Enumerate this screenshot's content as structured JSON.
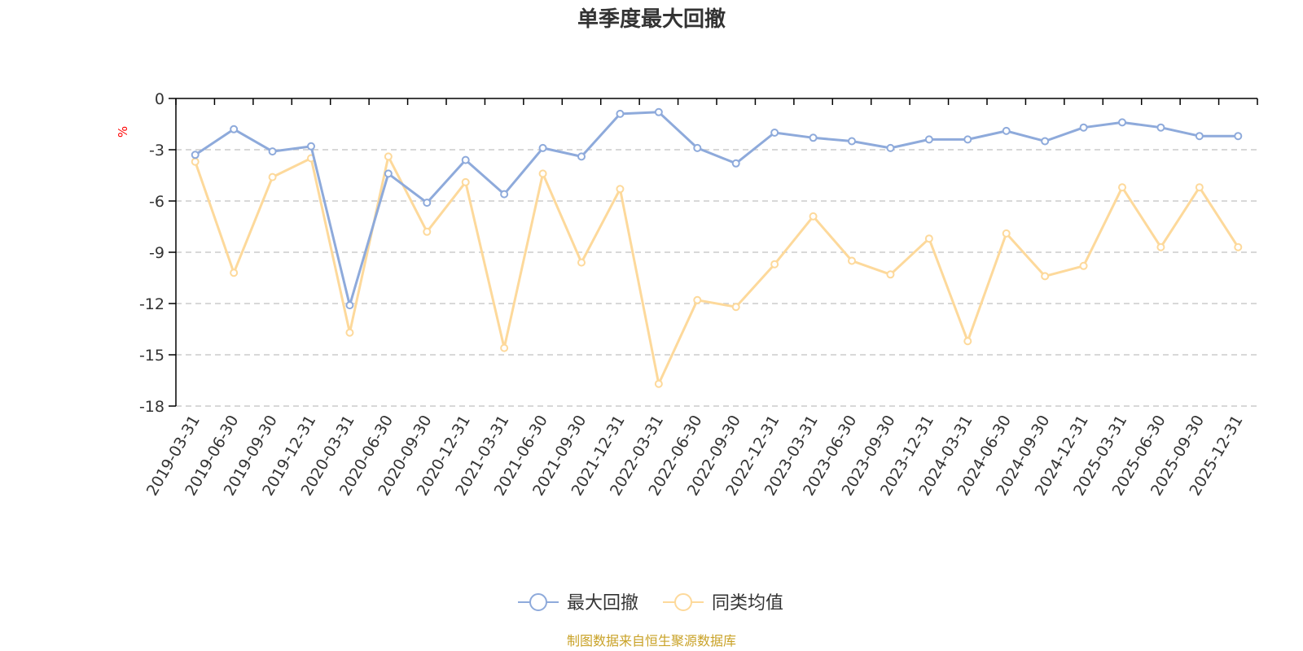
{
  "chart_data": {
    "type": "line",
    "title": "单季度最大回撤",
    "ylabel": "%",
    "ylim": [
      -18,
      0
    ],
    "yticks": [
      0,
      -3,
      -6,
      -9,
      -12,
      -15,
      -18
    ],
    "grid": true,
    "legend_position": "bottom",
    "categories": [
      "2019-03-31",
      "2019-06-30",
      "2019-09-30",
      "2019-12-31",
      "2020-03-31",
      "2020-06-30",
      "2020-09-30",
      "2020-12-31",
      "2021-03-31",
      "2021-06-30",
      "2021-09-30",
      "2021-12-31",
      "2022-03-31",
      "2022-06-30",
      "2022-09-30",
      "2022-12-31",
      "2023-03-31",
      "2023-06-30",
      "2023-09-30",
      "2023-12-31",
      "2024-03-31",
      "2024-06-30",
      "2024-09-30",
      "2024-12-31",
      "2025-03-31",
      "2025-06-30",
      "2025-09-30",
      "2025-12-31"
    ],
    "series": [
      {
        "name": "最大回撤",
        "color": "#8eaadb",
        "values": [
          -3.3,
          -1.8,
          -3.1,
          -2.8,
          -12.1,
          -4.4,
          -6.1,
          -3.6,
          -5.6,
          -2.9,
          -3.4,
          -0.9,
          -0.8,
          -2.9,
          -3.8,
          -2.0,
          -2.3,
          -2.5,
          -2.9,
          -2.4,
          -2.4,
          -1.9,
          -2.5,
          -1.7,
          -1.4,
          -1.7,
          -2.2,
          -2.2
        ]
      },
      {
        "name": "同类均值",
        "color": "#fdd99b",
        "values": [
          -3.7,
          -10.2,
          -4.6,
          -3.5,
          -13.7,
          -3.4,
          -7.8,
          -4.9,
          -14.6,
          -4.4,
          -9.6,
          -5.3,
          -16.7,
          -11.8,
          -12.2,
          -9.7,
          -6.9,
          -9.5,
          -10.3,
          -8.2,
          -14.2,
          -7.9,
          -10.4,
          -9.8,
          -5.2,
          -8.7,
          -5.2,
          -8.7
        ]
      }
    ],
    "source": "制图数据来自恒生聚源数据库",
    "colors": {
      "title": "#333333",
      "axis": "#000000",
      "grid": "#cccccc",
      "unit": "#ff0000",
      "source": "#c9a227"
    }
  }
}
